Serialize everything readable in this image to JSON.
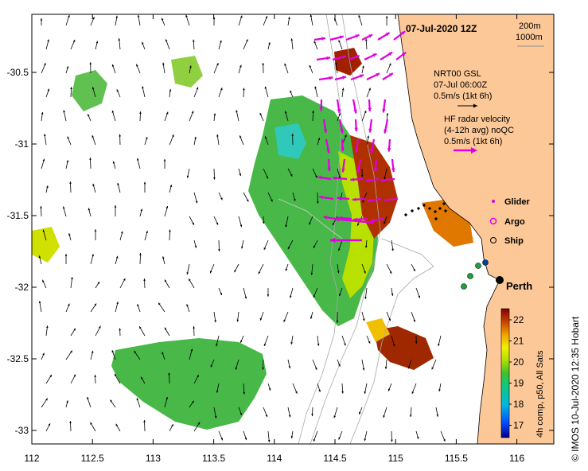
{
  "title": "07-Jul-2020 12Z",
  "scale": {
    "top": "200m",
    "bottom": "1000m"
  },
  "gsl": {
    "line1": "NRT00 GSL",
    "line2": "07-Jul 06:00Z",
    "line3": "0.5m/s (1kt 6h)"
  },
  "hf": {
    "line1": "HF radar velocity",
    "line2": "(4-12h avg) noQC",
    "line3": "0.5m/s (1kt 6h)"
  },
  "legend": [
    {
      "label": "Glider",
      "symbol": "dot",
      "color": "#e000e0"
    },
    {
      "label": "Argo",
      "symbol": "ring-magenta",
      "color": "#e000e0"
    },
    {
      "label": "Ship",
      "symbol": "ring-black",
      "color": "#000000"
    }
  ],
  "city": "Perth",
  "credit": "© IMOS 10-Jul-2020 12:35 Hobart",
  "colorbar": {
    "label": "4h comp, p50, All Sats",
    "ticks": [
      "22",
      "21",
      "20",
      "19",
      "18",
      "17"
    ]
  },
  "axes": {
    "x_ticks": [
      "112",
      "112.5",
      "113",
      "113.5",
      "114",
      "114.5",
      "115",
      "115.5",
      "116"
    ],
    "y_ticks": [
      "-30.5",
      "-31",
      "-31.5",
      "-32",
      "-32.5",
      "-33"
    ]
  },
  "colors": {
    "land": "#fcc898",
    "hf_arrow": "#e000e0",
    "gsl_arrow": "#000000"
  }
}
